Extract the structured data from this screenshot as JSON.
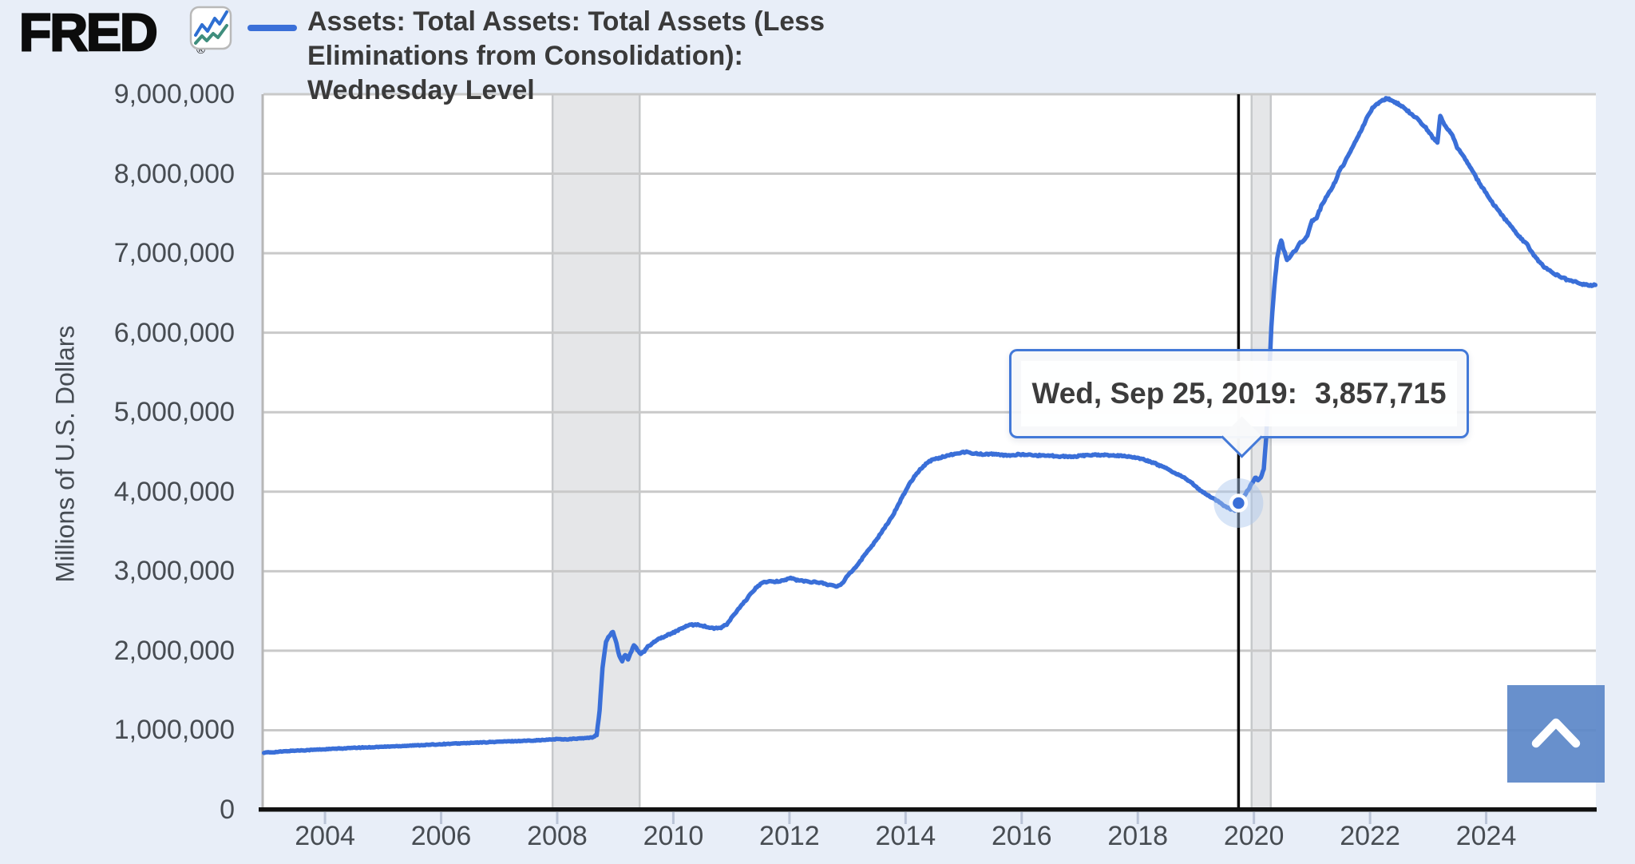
{
  "header": {
    "logo_text": "FRED",
    "logo_registered": "®",
    "logo_icon": "fred-zigzag-chart-icon",
    "series_title_lines": [
      "Assets: Total Assets: Total Assets (Less",
      "Eliminations from Consolidation):",
      "Wednesday Level"
    ]
  },
  "tooltip": {
    "date_label": "Wed, Sep 25, 2019:",
    "value_label": "3,857,715"
  },
  "scroll_button": {
    "icon": "chevron-up-icon"
  },
  "colors": {
    "page_background": "#e8eef8",
    "plot_background": "#ffffff",
    "gridline": "#c9c9c9",
    "plot_left_border": "#b7b7b7",
    "recession_band_fill": "#e5e6e8",
    "recession_band_edge": "#c6c8ca",
    "series_line": "#3a6fd8",
    "crosshair": "#0b0b0b",
    "x_axis_line": "#111111",
    "x_tick_mark": "#b9c3d6",
    "halo_fill": "#a9c5ee",
    "tooltip_border": "#4379d8",
    "button_blue": "#5b87c8",
    "logo_icon_blue": "#2e6fd2",
    "logo_icon_green": "#3f8e7d"
  },
  "chart_data": {
    "type": "line",
    "title": "Assets: Total Assets: Total Assets (Less Eliminations from Consolidation): Wednesday Level",
    "grid": true,
    "legend_position": "top-left",
    "x_axis": {
      "range": [
        2002.94,
        2025.89
      ],
      "tick_values": [
        2004,
        2006,
        2008,
        2010,
        2012,
        2014,
        2016,
        2018,
        2020,
        2022,
        2024
      ],
      "tick_labels": [
        "2004",
        "2006",
        "2008",
        "2010",
        "2012",
        "2014",
        "2016",
        "2018",
        "2020",
        "2022",
        "2024"
      ]
    },
    "y_axis": {
      "title": "Millions of U.S. Dollars",
      "range": [
        0,
        9000000
      ],
      "tick_values": [
        0,
        1000000,
        2000000,
        3000000,
        4000000,
        5000000,
        6000000,
        7000000,
        8000000,
        9000000
      ],
      "tick_labels": [
        "0",
        "1,000,000",
        "2,000,000",
        "3,000,000",
        "4,000,000",
        "5,000,000",
        "6,000,000",
        "7,000,000",
        "8,000,000",
        "9,000,000"
      ]
    },
    "recession_bands": [
      {
        "start": 2007.92,
        "end": 2009.42
      },
      {
        "start": 2019.96,
        "end": 2020.29
      }
    ],
    "highlight": {
      "x": 2019.735,
      "y": 3857715,
      "date_label": "Wed, Sep 25, 2019:",
      "value_label": "3,857,715"
    },
    "noise_amplitude_hint": 16000,
    "series": [
      {
        "name": "Assets: Total Assets: Total Assets (Less Eliminations from Consolidation): Wednesday Level",
        "color": "#3a6fd8",
        "points": [
          [
            2002.95,
            719000
          ],
          [
            2003.08,
            722000
          ],
          [
            2003.25,
            731000
          ],
          [
            2003.45,
            742000
          ],
          [
            2003.65,
            748000
          ],
          [
            2003.85,
            755000
          ],
          [
            2004.05,
            762000
          ],
          [
            2004.3,
            771000
          ],
          [
            2004.55,
            779000
          ],
          [
            2004.8,
            786000
          ],
          [
            2005.05,
            793000
          ],
          [
            2005.3,
            801000
          ],
          [
            2005.55,
            809000
          ],
          [
            2005.8,
            817000
          ],
          [
            2006.05,
            826000
          ],
          [
            2006.3,
            833000
          ],
          [
            2006.55,
            841000
          ],
          [
            2006.8,
            849000
          ],
          [
            2007.05,
            857000
          ],
          [
            2007.3,
            863000
          ],
          [
            2007.55,
            870000
          ],
          [
            2007.8,
            878000
          ],
          [
            2008.0,
            889000
          ],
          [
            2008.15,
            885000
          ],
          [
            2008.3,
            892000
          ],
          [
            2008.45,
            898000
          ],
          [
            2008.6,
            907000
          ],
          [
            2008.68,
            945000
          ],
          [
            2008.73,
            1250000
          ],
          [
            2008.78,
            1790000
          ],
          [
            2008.84,
            2110000
          ],
          [
            2008.9,
            2190000
          ],
          [
            2008.96,
            2240000
          ],
          [
            2009.02,
            2090000
          ],
          [
            2009.07,
            1930000
          ],
          [
            2009.12,
            1870000
          ],
          [
            2009.17,
            1950000
          ],
          [
            2009.22,
            1890000
          ],
          [
            2009.28,
            2000000
          ],
          [
            2009.32,
            2075000
          ],
          [
            2009.38,
            2010000
          ],
          [
            2009.44,
            1960000
          ],
          [
            2009.5,
            1990000
          ],
          [
            2009.56,
            2050000
          ],
          [
            2009.63,
            2090000
          ],
          [
            2009.7,
            2130000
          ],
          [
            2009.78,
            2160000
          ],
          [
            2009.86,
            2180000
          ],
          [
            2009.94,
            2210000
          ],
          [
            2010.02,
            2235000
          ],
          [
            2010.12,
            2270000
          ],
          [
            2010.22,
            2310000
          ],
          [
            2010.32,
            2325000
          ],
          [
            2010.42,
            2330000
          ],
          [
            2010.52,
            2310000
          ],
          [
            2010.62,
            2290000
          ],
          [
            2010.72,
            2280000
          ],
          [
            2010.82,
            2290000
          ],
          [
            2010.92,
            2330000
          ],
          [
            2011.02,
            2430000
          ],
          [
            2011.12,
            2520000
          ],
          [
            2011.22,
            2610000
          ],
          [
            2011.32,
            2700000
          ],
          [
            2011.42,
            2790000
          ],
          [
            2011.52,
            2850000
          ],
          [
            2011.62,
            2870000
          ],
          [
            2011.72,
            2865000
          ],
          [
            2011.82,
            2875000
          ],
          [
            2011.92,
            2890000
          ],
          [
            2012.02,
            2915000
          ],
          [
            2012.12,
            2890000
          ],
          [
            2012.25,
            2875000
          ],
          [
            2012.4,
            2865000
          ],
          [
            2012.55,
            2855000
          ],
          [
            2012.7,
            2825000
          ],
          [
            2012.82,
            2805000
          ],
          [
            2012.92,
            2855000
          ],
          [
            2013.0,
            2950000
          ],
          [
            2013.1,
            3020000
          ],
          [
            2013.2,
            3105000
          ],
          [
            2013.3,
            3210000
          ],
          [
            2013.42,
            3320000
          ],
          [
            2013.55,
            3450000
          ],
          [
            2013.68,
            3590000
          ],
          [
            2013.8,
            3730000
          ],
          [
            2013.92,
            3900000
          ],
          [
            2014.05,
            4080000
          ],
          [
            2014.15,
            4190000
          ],
          [
            2014.25,
            4280000
          ],
          [
            2014.35,
            4350000
          ],
          [
            2014.45,
            4400000
          ],
          [
            2014.6,
            4430000
          ],
          [
            2014.75,
            4460000
          ],
          [
            2014.9,
            4486000
          ],
          [
            2015.05,
            4500000
          ],
          [
            2015.2,
            4480000
          ],
          [
            2015.35,
            4470000
          ],
          [
            2015.5,
            4475000
          ],
          [
            2015.65,
            4460000
          ],
          [
            2015.8,
            4455000
          ],
          [
            2015.95,
            4470000
          ],
          [
            2016.1,
            4465000
          ],
          [
            2016.25,
            4455000
          ],
          [
            2016.4,
            4460000
          ],
          [
            2016.55,
            4450000
          ],
          [
            2016.7,
            4445000
          ],
          [
            2016.85,
            4440000
          ],
          [
            2017.0,
            4450000
          ],
          [
            2017.15,
            4460000
          ],
          [
            2017.3,
            4465000
          ],
          [
            2017.45,
            4460000
          ],
          [
            2017.6,
            4455000
          ],
          [
            2017.75,
            4450000
          ],
          [
            2017.88,
            4440000
          ],
          [
            2018.0,
            4425000
          ],
          [
            2018.15,
            4395000
          ],
          [
            2018.3,
            4355000
          ],
          [
            2018.45,
            4305000
          ],
          [
            2018.6,
            4250000
          ],
          [
            2018.75,
            4195000
          ],
          [
            2018.9,
            4130000
          ],
          [
            2019.05,
            4030000
          ],
          [
            2019.2,
            3960000
          ],
          [
            2019.35,
            3890000
          ],
          [
            2019.5,
            3820000
          ],
          [
            2019.6,
            3780000
          ],
          [
            2019.67,
            3762000
          ],
          [
            2019.71,
            3770000
          ],
          [
            2019.735,
            3857715
          ],
          [
            2019.78,
            3905000
          ],
          [
            2019.84,
            3960000
          ],
          [
            2019.9,
            4020000
          ],
          [
            2019.96,
            4100000
          ],
          [
            2020.02,
            4170000
          ],
          [
            2020.07,
            4155000
          ],
          [
            2020.12,
            4180000
          ],
          [
            2020.17,
            4290000
          ],
          [
            2020.21,
            4670000
          ],
          [
            2020.25,
            5250000
          ],
          [
            2020.3,
            6080000
          ],
          [
            2020.35,
            6570000
          ],
          [
            2020.4,
            6930000
          ],
          [
            2020.44,
            7090000
          ],
          [
            2020.47,
            7165000
          ],
          [
            2020.5,
            7080000
          ],
          [
            2020.53,
            7010000
          ],
          [
            2020.57,
            6925000
          ],
          [
            2020.62,
            6950000
          ],
          [
            2020.68,
            7010000
          ],
          [
            2020.74,
            7055000
          ],
          [
            2020.8,
            7135000
          ],
          [
            2020.86,
            7165000
          ],
          [
            2020.92,
            7230000
          ],
          [
            2021.0,
            7405000
          ],
          [
            2021.08,
            7450000
          ],
          [
            2021.16,
            7590000
          ],
          [
            2021.24,
            7700000
          ],
          [
            2021.32,
            7790000
          ],
          [
            2021.4,
            7900000
          ],
          [
            2021.48,
            8050000
          ],
          [
            2021.56,
            8130000
          ],
          [
            2021.64,
            8260000
          ],
          [
            2021.72,
            8360000
          ],
          [
            2021.8,
            8480000
          ],
          [
            2021.88,
            8600000
          ],
          [
            2021.96,
            8720000
          ],
          [
            2022.04,
            8820000
          ],
          [
            2022.12,
            8880000
          ],
          [
            2022.2,
            8915000
          ],
          [
            2022.29,
            8950000
          ],
          [
            2022.38,
            8920000
          ],
          [
            2022.48,
            8880000
          ],
          [
            2022.58,
            8830000
          ],
          [
            2022.68,
            8770000
          ],
          [
            2022.78,
            8710000
          ],
          [
            2022.88,
            8640000
          ],
          [
            2022.98,
            8560000
          ],
          [
            2023.08,
            8450000
          ],
          [
            2023.16,
            8390000
          ],
          [
            2023.21,
            8730000
          ],
          [
            2023.26,
            8640000
          ],
          [
            2023.32,
            8570000
          ],
          [
            2023.4,
            8510000
          ],
          [
            2023.5,
            8330000
          ],
          [
            2023.6,
            8230000
          ],
          [
            2023.7,
            8110000
          ],
          [
            2023.8,
            7990000
          ],
          [
            2023.9,
            7860000
          ],
          [
            2024.0,
            7760000
          ],
          [
            2024.1,
            7640000
          ],
          [
            2024.2,
            7545000
          ],
          [
            2024.3,
            7450000
          ],
          [
            2024.4,
            7360000
          ],
          [
            2024.5,
            7265000
          ],
          [
            2024.6,
            7185000
          ],
          [
            2024.7,
            7115000
          ],
          [
            2024.8,
            7000000
          ],
          [
            2024.9,
            6900000
          ],
          [
            2025.0,
            6830000
          ],
          [
            2025.1,
            6775000
          ],
          [
            2025.2,
            6730000
          ],
          [
            2025.3,
            6695000
          ],
          [
            2025.4,
            6665000
          ],
          [
            2025.5,
            6645000
          ],
          [
            2025.6,
            6625000
          ],
          [
            2025.7,
            6605000
          ],
          [
            2025.8,
            6595000
          ],
          [
            2025.88,
            6600000
          ]
        ]
      }
    ]
  }
}
